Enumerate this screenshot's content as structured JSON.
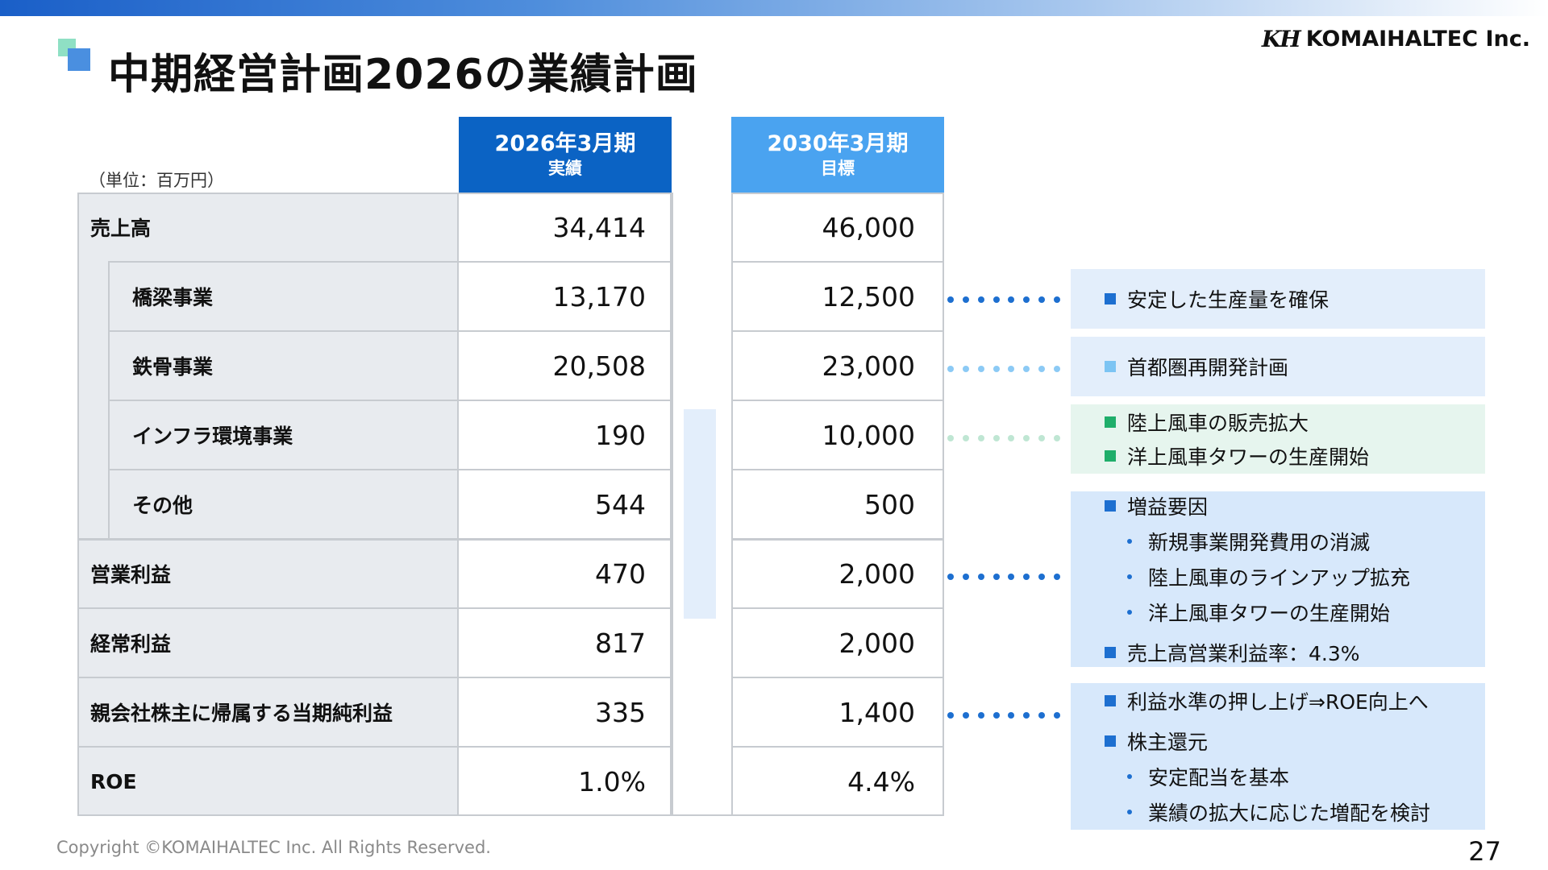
{
  "header": {
    "title": "中期経営計画2026の業績計画",
    "logo_mark": "KH",
    "logo_text": "KOMAIHALTEC Inc."
  },
  "table": {
    "unit": "（単位：百万円）",
    "col_actual": {
      "line1": "2026年3月期",
      "line2": "実績"
    },
    "col_target": {
      "line1": "2030年3月期",
      "line2": "目標"
    },
    "rows": [
      {
        "label": "売上高",
        "actual": "34,414",
        "target": "46,000"
      },
      {
        "label": "橋梁事業",
        "actual": "13,170",
        "target": "12,500"
      },
      {
        "label": "鉄骨事業",
        "actual": "20,508",
        "target": "23,000"
      },
      {
        "label": "インフラ環境事業",
        "actual": "190",
        "target": "10,000"
      },
      {
        "label": "その他",
        "actual": "544",
        "target": "500"
      },
      {
        "label": "営業利益",
        "actual": "470",
        "target": "2,000"
      },
      {
        "label": "経常利益",
        "actual": "817",
        "target": "2,000"
      },
      {
        "label": "親会社株主に帰属する当期純利益",
        "actual": "335",
        "target": "1,400"
      },
      {
        "label": "ROE",
        "actual": "1.0%",
        "target": "4.4%"
      }
    ]
  },
  "notes": {
    "bridge": {
      "items": [
        "安定した生産量を確保"
      ],
      "color": "#1d6fd0",
      "bg": "#e3eefb"
    },
    "steel": {
      "items": [
        "首都圏再開発計画"
      ],
      "color": "#7cc4f3",
      "bg": "#e3eefb"
    },
    "infra": {
      "items": [
        "陸上風車の販売拡大",
        "洋上風車タワーの生産開始"
      ],
      "color": "#1fae6a",
      "bg": "#e6f5ee"
    },
    "profit": {
      "heading": "増益要因",
      "subs": [
        "新規事業開発費用の消滅",
        "陸上風車のラインアップ拡充",
        "洋上風車タワーの生産開始"
      ],
      "extra": "売上高営業利益率：4.3%",
      "color": "#1d6fd0",
      "bg": "#d7e8fb"
    },
    "netincome": {
      "item1": "利益水準の押し上げ⇒ROE向上へ",
      "item2": "株主還元",
      "subs": [
        "安定配当を基本",
        "業績の拡大に応じた増配を検討"
      ],
      "color": "#1d6fd0",
      "bg": "#d7e8fb"
    }
  },
  "footer": {
    "copyright": "Copyright ©KOMAIHALTEC Inc. All Rights Reserved.",
    "page": "27"
  }
}
